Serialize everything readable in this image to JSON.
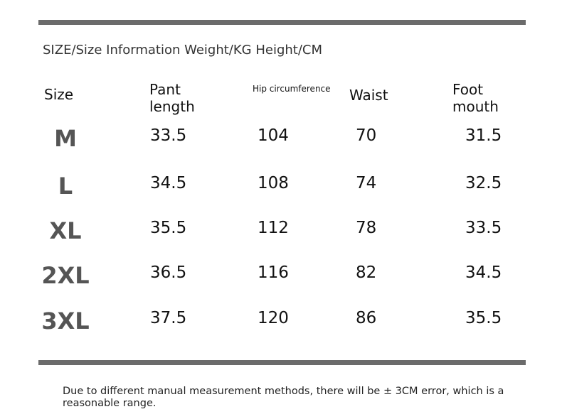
{
  "title": "SIZE/Size Information Weight/KG Height/CM",
  "table": {
    "headers": [
      "Size",
      "Pant length",
      "Hip circumference",
      "Waist",
      "Foot mouth"
    ],
    "rows": [
      [
        "M",
        "33.5",
        "104",
        "70",
        "31.5"
      ],
      [
        "L",
        "34.5",
        "108",
        "74",
        "32.5"
      ],
      [
        "XL",
        "35.5",
        "112",
        "78",
        "33.5"
      ],
      [
        "2XL",
        "36.5",
        "116",
        "82",
        "34.5"
      ],
      [
        "3XL",
        "37.5",
        "120",
        "86",
        "35.5"
      ]
    ]
  },
  "note": "Due to different manual measurement methods, there will be ± 3CM error, which is a reasonable range."
}
